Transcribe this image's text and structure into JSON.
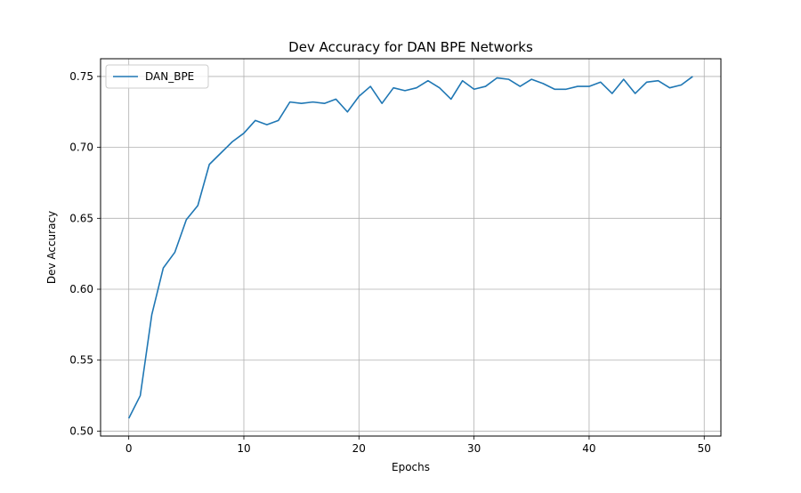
{
  "chart_data": {
    "type": "line",
    "title": "Dev Accuracy for DAN BPE Networks",
    "xlabel": "Epochs",
    "ylabel": "Dev Accuracy",
    "xlim": [
      -2.45,
      51.45
    ],
    "ylim": [
      0.4965,
      0.7625
    ],
    "xticks": [
      0,
      10,
      20,
      30,
      40,
      50
    ],
    "xtick_labels": [
      "0",
      "10",
      "20",
      "30",
      "40",
      "50"
    ],
    "yticks": [
      0.5,
      0.55,
      0.6,
      0.65,
      0.7,
      0.75
    ],
    "ytick_labels": [
      "0.50",
      "0.55",
      "0.60",
      "0.65",
      "0.70",
      "0.75"
    ],
    "grid": true,
    "legend_position": "top-left",
    "series": [
      {
        "name": "DAN_BPE",
        "color": "#1f77b4",
        "x": [
          0,
          1,
          2,
          3,
          4,
          5,
          6,
          7,
          8,
          9,
          10,
          11,
          12,
          13,
          14,
          15,
          16,
          17,
          18,
          19,
          20,
          21,
          22,
          23,
          24,
          25,
          26,
          27,
          28,
          29,
          30,
          31,
          32,
          33,
          34,
          35,
          36,
          37,
          38,
          39,
          40,
          41,
          42,
          43,
          44,
          45,
          46,
          47,
          48,
          49
        ],
        "values": [
          0.509,
          0.525,
          0.582,
          0.615,
          0.626,
          0.649,
          0.659,
          0.688,
          0.696,
          0.704,
          0.71,
          0.719,
          0.716,
          0.719,
          0.732,
          0.731,
          0.732,
          0.731,
          0.734,
          0.725,
          0.736,
          0.743,
          0.731,
          0.742,
          0.74,
          0.742,
          0.747,
          0.742,
          0.734,
          0.747,
          0.741,
          0.743,
          0.749,
          0.748,
          0.743,
          0.748,
          0.745,
          0.741,
          0.741,
          0.743,
          0.743,
          0.746,
          0.738,
          0.748,
          0.738,
          0.746,
          0.747,
          0.742,
          0.744,
          0.75
        ]
      }
    ]
  }
}
